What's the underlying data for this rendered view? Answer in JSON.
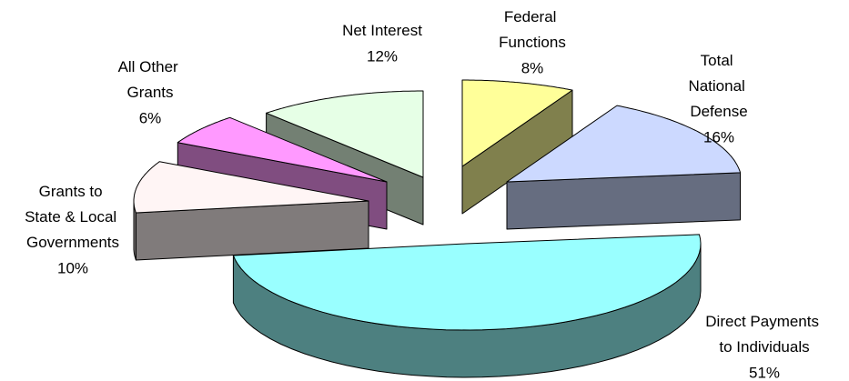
{
  "chart_data": {
    "type": "pie3d",
    "categories": [
      "Federal Functions",
      "Total National Defense",
      "Direct Payments to Individuals",
      "Grants to State & Local Governments",
      "All Other Grants",
      "Net Interest"
    ],
    "values": [
      8,
      16,
      51,
      10,
      6,
      12
    ],
    "value_labels": [
      "8%",
      "16%",
      "51%",
      "10%",
      "6%",
      "12%"
    ],
    "colors": [
      "#ffff99",
      "#ccd9ff",
      "#99ffff",
      "#fff5f5",
      "#ff99ff",
      "#e6ffe6"
    ]
  }
}
